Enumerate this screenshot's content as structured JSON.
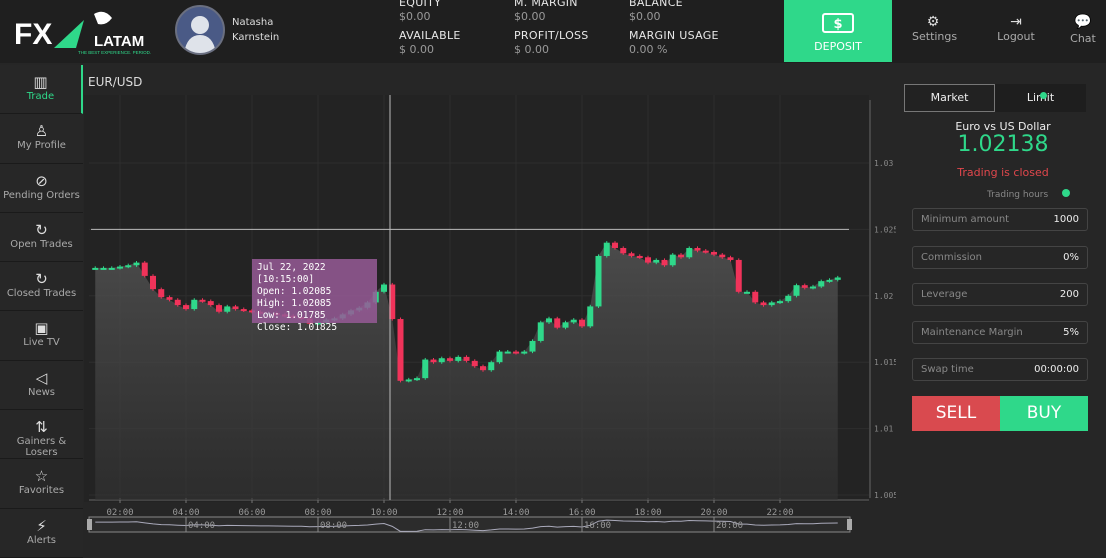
{
  "header": {
    "logo_text": "FX LATAM",
    "logo_tagline": "THE BEST EXPERIENCE. PERIOD.",
    "user_first": "Natasha",
    "user_last": "Karnstein",
    "stats": [
      {
        "label": "EQUITY",
        "value": "$0.00"
      },
      {
        "label": "M. MARGIN",
        "value": "$0.00"
      },
      {
        "label": "BALANCE",
        "value": "$0.00"
      },
      {
        "label": "AVAILABLE",
        "value": "$ 0.00"
      },
      {
        "label": "PROFIT/LOSS",
        "value": "$ 0.00"
      },
      {
        "label": "MARGIN USAGE",
        "value": "0.00 %"
      }
    ],
    "deposit": "DEPOSIT",
    "settings": "Settings",
    "logout": "Logout",
    "chat": "Chat"
  },
  "sidebar": {
    "items": [
      {
        "label": "Trade",
        "icon": "chart-bars-icon"
      },
      {
        "label": "My Profile",
        "icon": "user-icon"
      },
      {
        "label": "Pending Orders",
        "icon": "timer-icon"
      },
      {
        "label": "Open Trades",
        "icon": "open-trade-icon"
      },
      {
        "label": "Closed Trades",
        "icon": "closed-trade-icon"
      },
      {
        "label": "Live TV",
        "icon": "tv-icon"
      },
      {
        "label": "News",
        "icon": "megaphone-icon"
      },
      {
        "label": "Gainers & Losers",
        "icon": "arrows-icon"
      },
      {
        "label": "Favorites",
        "icon": "star-icon"
      },
      {
        "label": "Alerts",
        "icon": "alert-icon"
      }
    ]
  },
  "panel": {
    "tabs": [
      "Market",
      "Limit"
    ],
    "instrument": "Euro vs US Dollar",
    "price": "1.02138",
    "status": "Trading is closed",
    "hours": "Trading hours",
    "fields": [
      {
        "k": "Minimum amount",
        "v": "1000"
      },
      {
        "k": "Commission",
        "v": "0%"
      },
      {
        "k": "Leverage",
        "v": "200"
      },
      {
        "k": "Maintenance Margin",
        "v": "5%"
      },
      {
        "k": "Swap time",
        "v": "00:00:00"
      }
    ],
    "sell": "SELL",
    "buy": "BUY",
    "colors": {
      "up": "#2fd88a",
      "down": "#f0335a",
      "price": "#2fd88a",
      "status": "#e0474c"
    }
  },
  "chart_data": {
    "type": "candlestick",
    "symbol": "EUR/USD",
    "interval_minutes": 15,
    "first_time": "01:15",
    "xticks": [
      "02:00",
      "04:00",
      "06:00",
      "08:00",
      "10:00",
      "12:00",
      "14:00",
      "16:00",
      "18:00",
      "20:00",
      "22:00"
    ],
    "navigator_ticks": [
      "04:00",
      "08:00",
      "12:00",
      "16:00",
      "20:00"
    ],
    "yticks": [
      "1.03",
      "1.025",
      "1.02",
      "1.015",
      "1.01",
      "1.005"
    ],
    "ylim": [
      1.005,
      1.03
    ],
    "close": [
      1.0221,
      1.0221,
      1.0221,
      1.0222,
      1.0223,
      1.0225,
      1.0215,
      1.0205,
      1.0199,
      1.0197,
      1.0193,
      1.019,
      1.0197,
      1.0196,
      1.0193,
      1.0188,
      1.0192,
      1.019,
      1.0189,
      1.0188,
      1.0187,
      1.0187,
      1.0186,
      1.0185,
      1.0184,
      1.0183,
      1.0179,
      1.018,
      1.0182,
      1.0183,
      1.0186,
      1.0189,
      1.0191,
      1.0195,
      1.0203,
      1.02085,
      1.01825,
      1.0136,
      1.0137,
      1.0138,
      1.0152,
      1.015,
      1.0153,
      1.0151,
      1.0154,
      1.0151,
      1.0147,
      1.0144,
      1.015,
      1.0158,
      1.0158,
      1.0157,
      1.0158,
      1.0166,
      1.018,
      1.0183,
      1.0176,
      1.018,
      1.0182,
      1.0177,
      1.0192,
      1.023,
      1.024,
      1.0236,
      1.0232,
      1.023,
      1.0229,
      1.0225,
      1.0227,
      1.0223,
      1.0231,
      1.0229,
      1.0236,
      1.0234,
      1.0233,
      1.0231,
      1.0229,
      1.0227,
      1.0203,
      1.0203,
      1.0195,
      1.0193,
      1.0195,
      1.0196,
      1.02,
      1.0208,
      1.0206,
      1.0207,
      1.0211,
      1.0212,
      1.02138
    ],
    "crosshair_price": 1.025,
    "tooltip": {
      "date": "Jul 22, 2022 [10:15:00]",
      "open": "Open: 1.02085",
      "high": "High: 1.02085",
      "low": "Low: 1.01785",
      "close": "Close: 1.01825"
    }
  }
}
